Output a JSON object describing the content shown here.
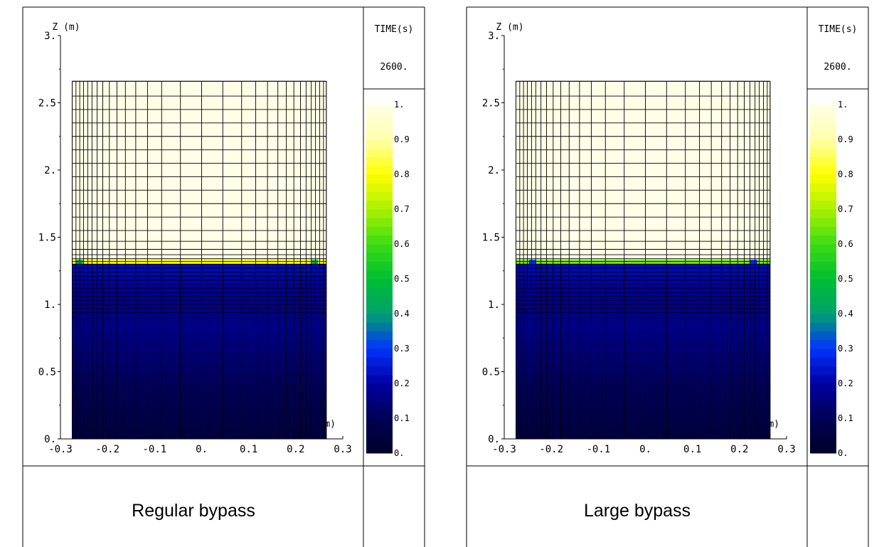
{
  "figure": {
    "panels": [
      {
        "caption": "Regular bypass",
        "time_label": "TIME(s)",
        "time_value": "2600.",
        "x_unit_fragment": "m)"
      },
      {
        "caption": "Large bypass",
        "time_label": "TIME(s)",
        "time_value": "2600.",
        "x_unit_fragment": "m)"
      }
    ]
  },
  "chart_data": [
    {
      "type": "heatmap",
      "title": "Regular bypass",
      "time_label": "TIME(s)",
      "time": 2600,
      "ylabel": "Z (m)",
      "xlabel": "(m)",
      "xlim": [
        -0.3,
        0.3
      ],
      "ylim": [
        0,
        3
      ],
      "x_ticks": [
        -0.3,
        -0.2,
        -0.1,
        0.0,
        0.1,
        0.2,
        0.3
      ],
      "x_tick_labels": [
        "-0.3",
        "-0.2",
        "-0.1",
        "0.",
        "0.1",
        "0.2",
        "0.3"
      ],
      "y_ticks": [
        0,
        0.5,
        1,
        1.5,
        2,
        2.5,
        3
      ],
      "y_tick_labels": [
        "0.",
        "0.5",
        "1.",
        "1.5",
        "2.",
        "2.5",
        "3."
      ],
      "domain_x": [
        -0.275,
        0.265
      ],
      "domain_top": 2.66,
      "interface_z": 1.3,
      "interface_value": 0.8,
      "upper_value": 1.0,
      "lower_value": 0.05,
      "anomaly_cells": [
        {
          "x": -0.26,
          "value": 0.45
        },
        {
          "x": 0.24,
          "value": 0.45
        }
      ],
      "colorbar": {
        "min": 0,
        "max": 1,
        "tick_labels": [
          "0.",
          "0.1",
          "0.2",
          "0.3",
          "0.4",
          "0.5",
          "0.6",
          "0.7",
          "0.8",
          "0.9",
          "1."
        ]
      }
    },
    {
      "type": "heatmap",
      "title": "Large bypass",
      "time_label": "TIME(s)",
      "time": 2600,
      "ylabel": "Z (m)",
      "xlabel": "(m)",
      "xlim": [
        -0.3,
        0.3
      ],
      "ylim": [
        0,
        3
      ],
      "x_ticks": [
        -0.3,
        -0.2,
        -0.1,
        0.0,
        0.1,
        0.2,
        0.3
      ],
      "x_tick_labels": [
        "-0.3",
        "-0.2",
        "-0.1",
        "0.",
        "0.1",
        "0.2",
        "0.3"
      ],
      "y_ticks": [
        0,
        0.5,
        1,
        1.5,
        2,
        2.5,
        3
      ],
      "y_tick_labels": [
        "0.",
        "0.5",
        "1.",
        "1.5",
        "2.",
        "2.5",
        "3."
      ],
      "domain_x": [
        -0.275,
        0.265
      ],
      "domain_top": 2.66,
      "interface_z": 1.3,
      "interface_value": 0.65,
      "upper_value": 1.0,
      "lower_value": 0.05,
      "anomaly_cells": [
        {
          "x": -0.24,
          "value": 0.3
        },
        {
          "x": 0.23,
          "value": 0.3
        }
      ],
      "colorbar": {
        "min": 0,
        "max": 1,
        "tick_labels": [
          "0.",
          "0.1",
          "0.2",
          "0.3",
          "0.4",
          "0.5",
          "0.6",
          "0.7",
          "0.8",
          "0.9",
          "1."
        ]
      }
    }
  ]
}
